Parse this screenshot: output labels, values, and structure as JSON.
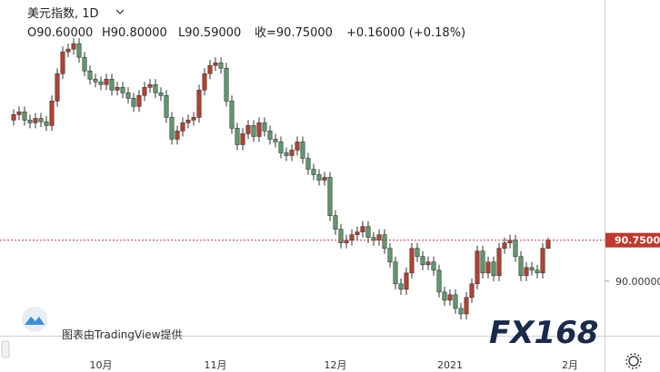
{
  "header": {
    "symbol": "美元指数, 1D",
    "open": "O90.60000",
    "high": "H90.80000",
    "low": "L90.59000",
    "close": "收=90.75000",
    "change": "+0.16000 (+0.18%)"
  },
  "watermark": "图表由TradingView提供",
  "logo": "FX168",
  "chart_data": {
    "type": "candlestick",
    "categories": [
      null,
      null,
      null,
      null,
      null,
      null,
      null,
      null,
      null,
      null,
      null,
      null,
      null,
      null,
      null,
      null,
      "10月",
      null,
      null,
      null,
      null,
      null,
      null,
      null,
      null,
      null,
      null,
      null,
      null,
      null,
      null,
      null,
      null,
      null,
      null,
      null,
      null,
      "11月",
      null,
      null,
      null,
      null,
      null,
      null,
      null,
      null,
      null,
      null,
      null,
      null,
      null,
      null,
      null,
      null,
      null,
      null,
      null,
      null,
      null,
      "12月",
      null,
      null,
      null,
      null,
      null,
      null,
      null,
      null,
      null,
      null,
      null,
      null,
      null,
      null,
      null,
      null,
      null,
      null,
      null,
      null,
      "2021",
      null,
      null,
      null,
      null,
      null,
      null,
      null,
      null,
      null,
      null,
      null,
      null,
      null,
      null,
      null,
      null,
      null,
      null,
      null,
      null,
      null,
      "2月"
    ],
    "open": [
      92.95,
      93.05,
      93.1,
      92.95,
      92.9,
      92.98,
      92.92,
      92.85,
      93.3,
      93.8,
      94.2,
      94.25,
      94.35,
      94.1,
      93.85,
      93.7,
      93.65,
      93.6,
      93.7,
      93.5,
      93.55,
      93.45,
      93.35,
      93.2,
      93.4,
      93.55,
      93.6,
      93.45,
      93.4,
      93.0,
      92.6,
      92.75,
      92.9,
      92.95,
      93.0,
      93.5,
      93.8,
      93.95,
      94.0,
      93.9,
      93.3,
      92.8,
      92.5,
      92.7,
      92.85,
      92.65,
      92.9,
      92.75,
      92.6,
      92.55,
      92.35,
      92.3,
      92.4,
      92.55,
      92.25,
      92.05,
      91.95,
      91.85,
      91.9,
      91.2,
      90.95,
      90.7,
      90.75,
      90.85,
      90.9,
      91.0,
      90.8,
      90.75,
      90.85,
      90.6,
      90.35,
      89.95,
      89.85,
      90.15,
      90.6,
      90.45,
      90.3,
      90.35,
      90.2,
      89.8,
      89.65,
      89.75,
      89.5,
      89.4,
      89.7,
      89.95,
      90.55,
      90.15,
      90.35,
      90.1,
      90.6,
      90.7,
      90.75,
      90.45,
      90.1,
      90.25,
      90.2,
      90.15,
      90.6,
      null,
      null,
      null,
      null
    ],
    "high": [
      93.15,
      93.2,
      93.2,
      93.05,
      93.08,
      93.08,
      93.02,
      93.4,
      93.9,
      94.3,
      94.35,
      94.45,
      94.45,
      94.2,
      93.95,
      93.8,
      93.75,
      93.8,
      93.8,
      93.65,
      93.65,
      93.55,
      93.45,
      93.5,
      93.65,
      93.7,
      93.7,
      93.55,
      93.5,
      93.1,
      92.85,
      93.0,
      93.05,
      93.1,
      93.6,
      93.9,
      94.05,
      94.1,
      94.1,
      94.0,
      93.4,
      92.9,
      92.8,
      92.95,
      92.95,
      93.0,
      93.0,
      92.85,
      92.7,
      92.65,
      92.45,
      92.5,
      92.65,
      92.65,
      92.35,
      92.15,
      92.05,
      92.0,
      92.0,
      91.3,
      91.05,
      90.85,
      90.95,
      91.0,
      91.1,
      91.1,
      90.9,
      90.95,
      90.95,
      90.7,
      90.45,
      90.05,
      90.25,
      90.7,
      90.7,
      90.55,
      90.45,
      90.45,
      90.3,
      89.9,
      89.85,
      89.85,
      89.6,
      89.8,
      90.05,
      90.65,
      90.65,
      90.45,
      90.45,
      90.7,
      90.8,
      90.85,
      90.85,
      90.55,
      90.35,
      90.35,
      90.3,
      90.7,
      90.8,
      null,
      null,
      null,
      null
    ],
    "low": [
      92.85,
      92.95,
      92.85,
      92.8,
      92.8,
      92.82,
      92.75,
      92.75,
      93.2,
      93.7,
      94.1,
      94.15,
      94.0,
      93.75,
      93.6,
      93.55,
      93.5,
      93.5,
      93.4,
      93.4,
      93.35,
      93.25,
      93.1,
      93.1,
      93.3,
      93.45,
      93.35,
      93.3,
      92.9,
      92.5,
      92.5,
      92.65,
      92.8,
      92.85,
      92.9,
      93.4,
      93.7,
      93.85,
      93.8,
      93.2,
      92.7,
      92.4,
      92.4,
      92.6,
      92.55,
      92.55,
      92.65,
      92.5,
      92.45,
      92.25,
      92.2,
      92.2,
      92.3,
      92.15,
      91.95,
      91.85,
      91.75,
      91.75,
      91.1,
      90.85,
      90.6,
      90.6,
      90.65,
      90.75,
      90.8,
      90.7,
      90.65,
      90.65,
      90.5,
      90.25,
      89.85,
      89.75,
      89.75,
      90.05,
      90.35,
      90.2,
      90.2,
      90.1,
      89.7,
      89.55,
      89.55,
      89.4,
      89.3,
      89.3,
      89.6,
      89.85,
      90.05,
      90.05,
      90.0,
      90.0,
      90.5,
      90.6,
      90.35,
      90.0,
      90.0,
      90.1,
      90.05,
      90.05,
      90.59,
      null,
      null,
      null,
      null
    ],
    "close": [
      93.05,
      93.1,
      92.95,
      92.9,
      92.98,
      92.92,
      92.85,
      93.3,
      93.8,
      94.2,
      94.25,
      94.35,
      94.1,
      93.85,
      93.7,
      93.65,
      93.6,
      93.7,
      93.5,
      93.55,
      93.45,
      93.35,
      93.2,
      93.4,
      93.55,
      93.6,
      93.45,
      93.4,
      93.0,
      92.6,
      92.75,
      92.9,
      92.95,
      93.0,
      93.5,
      93.8,
      93.95,
      94.0,
      93.9,
      93.3,
      92.8,
      92.5,
      92.7,
      92.85,
      92.65,
      92.9,
      92.75,
      92.6,
      92.55,
      92.35,
      92.3,
      92.4,
      92.55,
      92.25,
      92.05,
      91.95,
      91.85,
      91.9,
      91.2,
      90.95,
      90.7,
      90.75,
      90.85,
      90.9,
      91.0,
      90.8,
      90.75,
      90.85,
      90.6,
      90.35,
      89.95,
      89.85,
      90.15,
      90.6,
      90.45,
      90.3,
      90.35,
      90.2,
      89.8,
      89.65,
      89.75,
      89.5,
      89.4,
      89.7,
      89.95,
      90.55,
      90.15,
      90.35,
      90.1,
      90.6,
      90.7,
      90.75,
      90.45,
      90.1,
      90.25,
      90.2,
      90.15,
      90.6,
      90.75,
      null,
      null,
      null,
      null
    ],
    "up_color": "#b8402f",
    "down_color": "#5e9a6c",
    "ylim": [
      89.0,
      95.15
    ],
    "yticks": [
      {
        "value": 90,
        "label": "90.00000"
      }
    ],
    "last_price": {
      "value": 90.75,
      "label": "90.75000",
      "color": "#c0392b"
    }
  }
}
